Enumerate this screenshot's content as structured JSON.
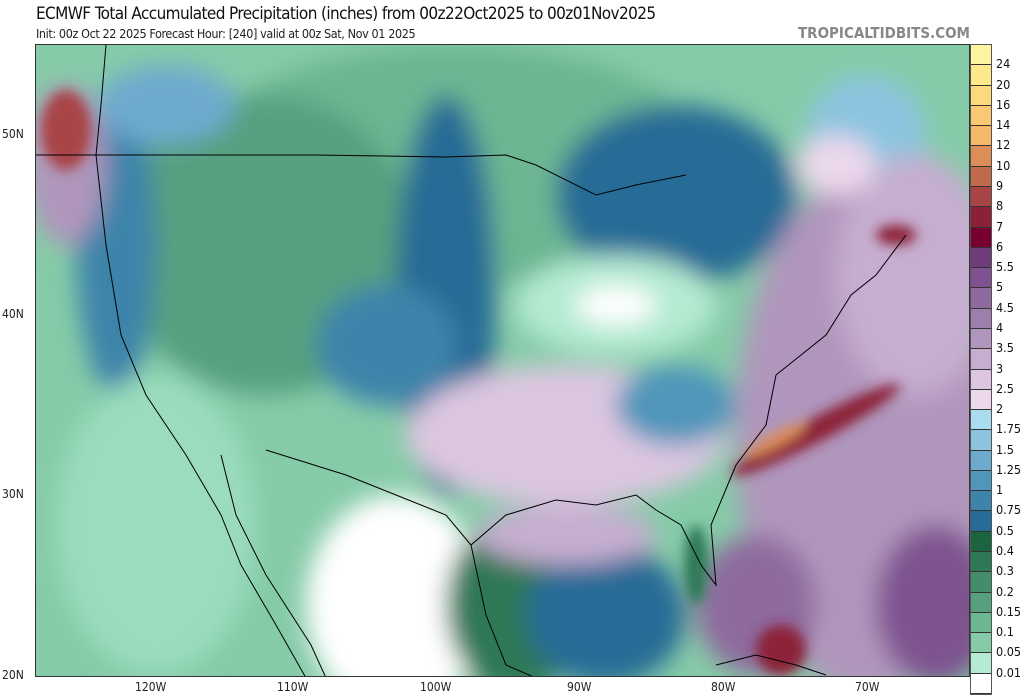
{
  "header": {
    "title": "ECMWF Total Accumulated Precipitation (inches) from 00z22Oct2025 to 00z01Nov2025",
    "subtitle": "Init: 00z Oct 22 2025   Forecast Hour: [240]   valid at 00z Sat, Nov 01 2025",
    "brand": "TROPICALTIDBITS.COM"
  },
  "map": {
    "lat_labels": [
      "50N",
      "40N",
      "30N",
      "20N"
    ],
    "lon_labels": [
      "120W",
      "110W",
      "100W",
      "90W",
      "80W",
      "70W"
    ]
  },
  "colorbar": {
    "labels": [
      "24",
      "20",
      "16",
      "14",
      "12",
      "10",
      "9",
      "8",
      "7",
      "6",
      "5.5",
      "5",
      "4.5",
      "4",
      "3.5",
      "3",
      "2.5",
      "2",
      "1.75",
      "1.5",
      "1.25",
      "1",
      "0.75",
      "0.5",
      "0.4",
      "0.3",
      "0.2",
      "0.15",
      "0.1",
      "0.05",
      "0.01"
    ],
    "colors": [
      "#fff5a0",
      "#fde98c",
      "#fcda7c",
      "#f9c872",
      "#f5b866",
      "#dd8e58",
      "#c06a4c",
      "#a84446",
      "#8c2038",
      "#780030",
      "#6e3c78",
      "#7e5290",
      "#8e6a9e",
      "#9e7eac",
      "#b096bc",
      "#c6aed0",
      "#dcc6e0",
      "#ecd8ec",
      "#aadcf0",
      "#8cc4e0",
      "#6eaace",
      "#5096ba",
      "#3c84aa",
      "#266c96",
      "#1a6440",
      "#2d7856",
      "#438c6c",
      "#57a07f",
      "#6db692",
      "#86cba8",
      "#b4ebd2",
      "#ffffff"
    ]
  }
}
